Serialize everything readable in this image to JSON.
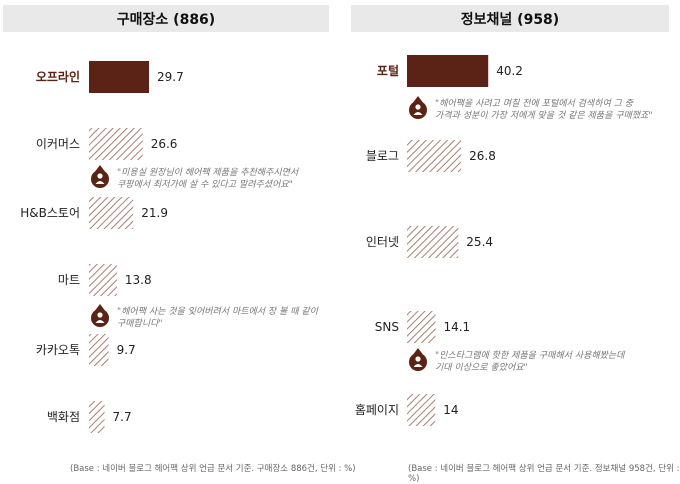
{
  "panels": [
    {
      "title": "구매장소 (886)",
      "note": "(Base : 네이버 블로그 헤어팩 상위 언급 문서 기준. 구매장소 886건, 단위 : %)"
    },
    {
      "title": "정보채널 (958)",
      "note": "(Base : 네이버 블로그 헤어팩 상위 언급 문서 기준. 정보채널 958건, 단위 : %)"
    }
  ],
  "colors": {
    "highlight": "#5b2216",
    "hatch": "#a88070",
    "icon": "#5b2216"
  },
  "chart_data": [
    {
      "type": "bar",
      "orientation": "horizontal",
      "title": "구매장소 (886)",
      "categories": [
        "오프라인",
        "이커머스",
        "H&B스토어",
        "마트",
        "카카오톡",
        "백화점"
      ],
      "values": [
        29.7,
        26.6,
        21.9,
        13.8,
        9.7,
        7.7
      ],
      "value_labels": [
        "29.7",
        "26.6",
        "21.9",
        "13.8",
        "9.7",
        "7.7"
      ],
      "highlight_index": 0,
      "quotes": [
        {
          "after": 1,
          "lines": [
            "\"미용실 원장님이 헤어팩 제품을 추천해주시면서",
            "쿠팡에서 최저가에 살 수 있다고 말려주셨어요\""
          ]
        },
        {
          "after": 3,
          "lines": [
            "\"헤어팩 사는 것을 잊어버려서 마트에서 장 볼 때 같이",
            "구매합니다\""
          ]
        }
      ]
    },
    {
      "type": "bar",
      "orientation": "horizontal",
      "title": "정보채널 (958)",
      "categories": [
        "포털",
        "블로그",
        "인터넷",
        "SNS",
        "홈페이지"
      ],
      "values": [
        40.2,
        26.8,
        25.4,
        14.1,
        14
      ],
      "value_labels": [
        "40.2",
        "26.8",
        "25.4",
        "14.1",
        "14"
      ],
      "highlight_index": 0,
      "quotes": [
        {
          "after": 0,
          "lines": [
            "\"헤어팩을 사려고 며칠 전에 포털에서 검색하여 그 중",
            "가격과 성분이 가장 저에게 맞을 것 같은 제품을 구매했죠\""
          ]
        },
        {
          "after": 3,
          "lines": [
            "\"인스타그램에 핫한 제품을 구매해서 사용해봤는데",
            "기대 이상으로 좋았어요\""
          ]
        }
      ]
    }
  ]
}
